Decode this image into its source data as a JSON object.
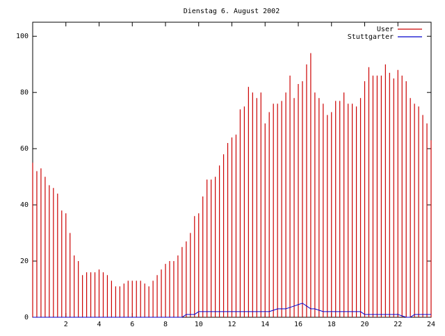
{
  "chart_data": {
    "type": "line",
    "title": "Dienstag 6. August 2002",
    "x": [
      0,
      0.25,
      0.5,
      0.75,
      1,
      1.25,
      1.5,
      1.75,
      2,
      2.25,
      2.5,
      2.75,
      3,
      3.25,
      3.5,
      3.75,
      4,
      4.25,
      4.5,
      4.75,
      5,
      5.25,
      5.5,
      5.75,
      6,
      6.25,
      6.5,
      6.75,
      7,
      7.25,
      7.5,
      7.75,
      8,
      8.25,
      8.5,
      8.75,
      9,
      9.25,
      9.5,
      9.75,
      10,
      10.25,
      10.5,
      10.75,
      11,
      11.25,
      11.5,
      11.75,
      12,
      12.25,
      12.5,
      12.75,
      13,
      13.25,
      13.5,
      13.75,
      14,
      14.25,
      14.5,
      14.75,
      15,
      15.25,
      15.5,
      15.75,
      16,
      16.25,
      16.5,
      16.75,
      17,
      17.25,
      17.5,
      17.75,
      18,
      18.25,
      18.5,
      18.75,
      19,
      19.25,
      19.5,
      19.75,
      20,
      20.25,
      20.5,
      20.75,
      21,
      21.25,
      21.5,
      21.75,
      22,
      22.25,
      22.5,
      22.75,
      23,
      23.25,
      23.5,
      23.75,
      24
    ],
    "series": [
      {
        "name": "User",
        "color": "#cc0000",
        "style": "impulses",
        "values": [
          55,
          52,
          53,
          50,
          47,
          46,
          44,
          38,
          37,
          30,
          22,
          20,
          15,
          16,
          16,
          16,
          17,
          16,
          15,
          13,
          11,
          11,
          12,
          13,
          13,
          13,
          13,
          12,
          11,
          13,
          15,
          17,
          19,
          20,
          20,
          22,
          25,
          27,
          30,
          36,
          37,
          43,
          49,
          49,
          50,
          54,
          58,
          62,
          64,
          65,
          74,
          75,
          82,
          80,
          78,
          80,
          69,
          73,
          76,
          76,
          77,
          80,
          86,
          78,
          83,
          84,
          90,
          94,
          80,
          78,
          76,
          72,
          73,
          77,
          77,
          80,
          76,
          76,
          75,
          78,
          84,
          89,
          86,
          86,
          86,
          90,
          87,
          85,
          88,
          86,
          84,
          78,
          76,
          75,
          72,
          69,
          63
        ]
      },
      {
        "name": "Stuttgarter",
        "color": "#0000cc",
        "style": "lines",
        "values": [
          0,
          0,
          0,
          0,
          0,
          0,
          0,
          0,
          0,
          0,
          0,
          0,
          0,
          0,
          0,
          0,
          0,
          0,
          0,
          0,
          0,
          0,
          0,
          0,
          0,
          0,
          0,
          0,
          0,
          0,
          0,
          0,
          0,
          0,
          0,
          0,
          0,
          1,
          1,
          1,
          2,
          2,
          2,
          2,
          2,
          2,
          2,
          2,
          2,
          2,
          2,
          2,
          2,
          2,
          2,
          2,
          2,
          2,
          2.5,
          3,
          3,
          3,
          3.5,
          4,
          4.5,
          5,
          4,
          3,
          3,
          2.5,
          2,
          2,
          2,
          2,
          2,
          2,
          2,
          2,
          2,
          2,
          1,
          1,
          1,
          1,
          1,
          1,
          1,
          1,
          1,
          0.5,
          0,
          0,
          1,
          1,
          1,
          1,
          1
        ]
      }
    ],
    "xlim": [
      0,
      24
    ],
    "xticks": [
      2,
      4,
      6,
      8,
      10,
      12,
      14,
      16,
      18,
      20,
      22,
      24
    ],
    "ylim": [
      0,
      105
    ],
    "yticks": [
      0,
      20,
      40,
      60,
      80,
      100
    ],
    "grid": false,
    "legend": "top-right"
  }
}
